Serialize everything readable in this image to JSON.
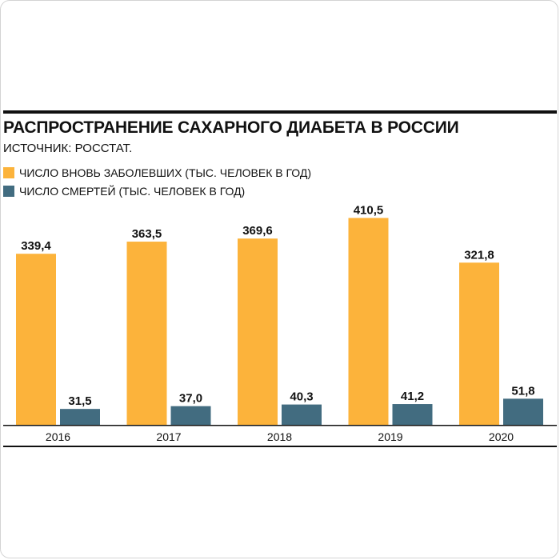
{
  "title": "РАСПРОСТРАНЕНИЕ САХАРНОГО ДИАБЕТА В РОССИИ",
  "subtitle": "ИСТОЧНИК: РОССТАТ.",
  "colors": {
    "series1": "#FCB33B",
    "series2": "#426C80",
    "text": "#111111"
  },
  "chart_data": {
    "type": "bar",
    "title": "РАСПРОСТРАНЕНИЕ САХАРНОГО ДИАБЕТА В РОССИИ",
    "subtitle": "ИСТОЧНИК: РОССТАТ.",
    "categories": [
      "2016",
      "2017",
      "2018",
      "2019",
      "2020"
    ],
    "series": [
      {
        "name": "ЧИСЛО ВНОВЬ ЗАБОЛЕВШИХ (ТЫС. ЧЕЛОВЕК В ГОД)",
        "values": [
          339.4,
          363.5,
          369.6,
          410.5,
          321.8
        ],
        "labels": [
          "339,4",
          "363,5",
          "369,6",
          "410,5",
          "321,8"
        ]
      },
      {
        "name": "ЧИСЛО СМЕРТЕЙ (ТЫС. ЧЕЛОВЕК В ГОД)",
        "values": [
          31.5,
          37.0,
          40.3,
          41.2,
          51.8
        ],
        "labels": [
          "31,5",
          "37,0",
          "40,3",
          "41,2",
          "51,8"
        ]
      }
    ],
    "xlabel": "",
    "ylabel": "",
    "ylim": [
      0,
      435
    ],
    "grid": false,
    "legend": "top-left"
  }
}
